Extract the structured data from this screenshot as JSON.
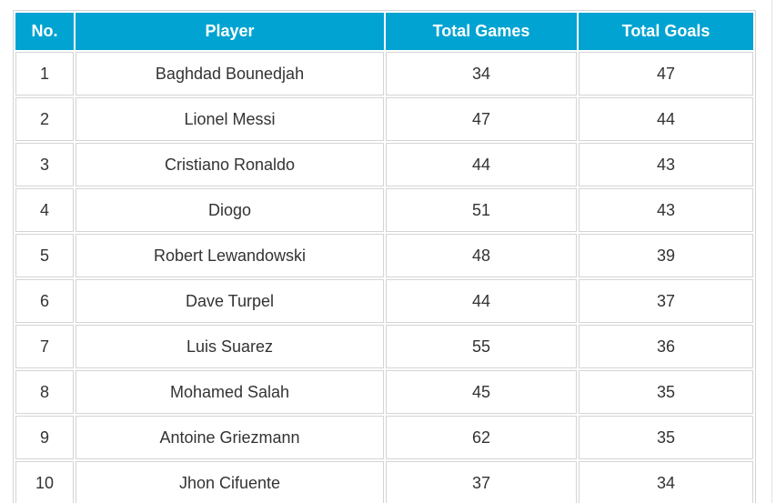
{
  "table": {
    "headers": {
      "no": "No.",
      "player": "Player",
      "games": "Total Games",
      "goals": "Total Goals"
    },
    "rows": [
      {
        "no": "1",
        "player": "Baghdad Bounedjah",
        "games": "34",
        "goals": "47"
      },
      {
        "no": "2",
        "player": "Lionel Messi",
        "games": "47",
        "goals": "44"
      },
      {
        "no": "3",
        "player": "Cristiano Ronaldo",
        "games": "44",
        "goals": "43"
      },
      {
        "no": "4",
        "player": "Diogo",
        "games": "51",
        "goals": "43"
      },
      {
        "no": "5",
        "player": "Robert Lewandowski",
        "games": "48",
        "goals": "39"
      },
      {
        "no": "6",
        "player": "Dave Turpel",
        "games": "44",
        "goals": "37"
      },
      {
        "no": "7",
        "player": "Luis Suarez",
        "games": "55",
        "goals": "36"
      },
      {
        "no": "8",
        "player": "Mohamed Salah",
        "games": "45",
        "goals": "35"
      },
      {
        "no": "9",
        "player": "Antoine Griezmann",
        "games": "62",
        "goals": "35"
      },
      {
        "no": "10",
        "player": "Jhon Cifuente",
        "games": "37",
        "goals": "34"
      }
    ]
  },
  "colors": {
    "header_background": "#00a3d1",
    "header_text": "#ffffff",
    "cell_border": "#d4d4d4",
    "cell_text": "#333333"
  }
}
